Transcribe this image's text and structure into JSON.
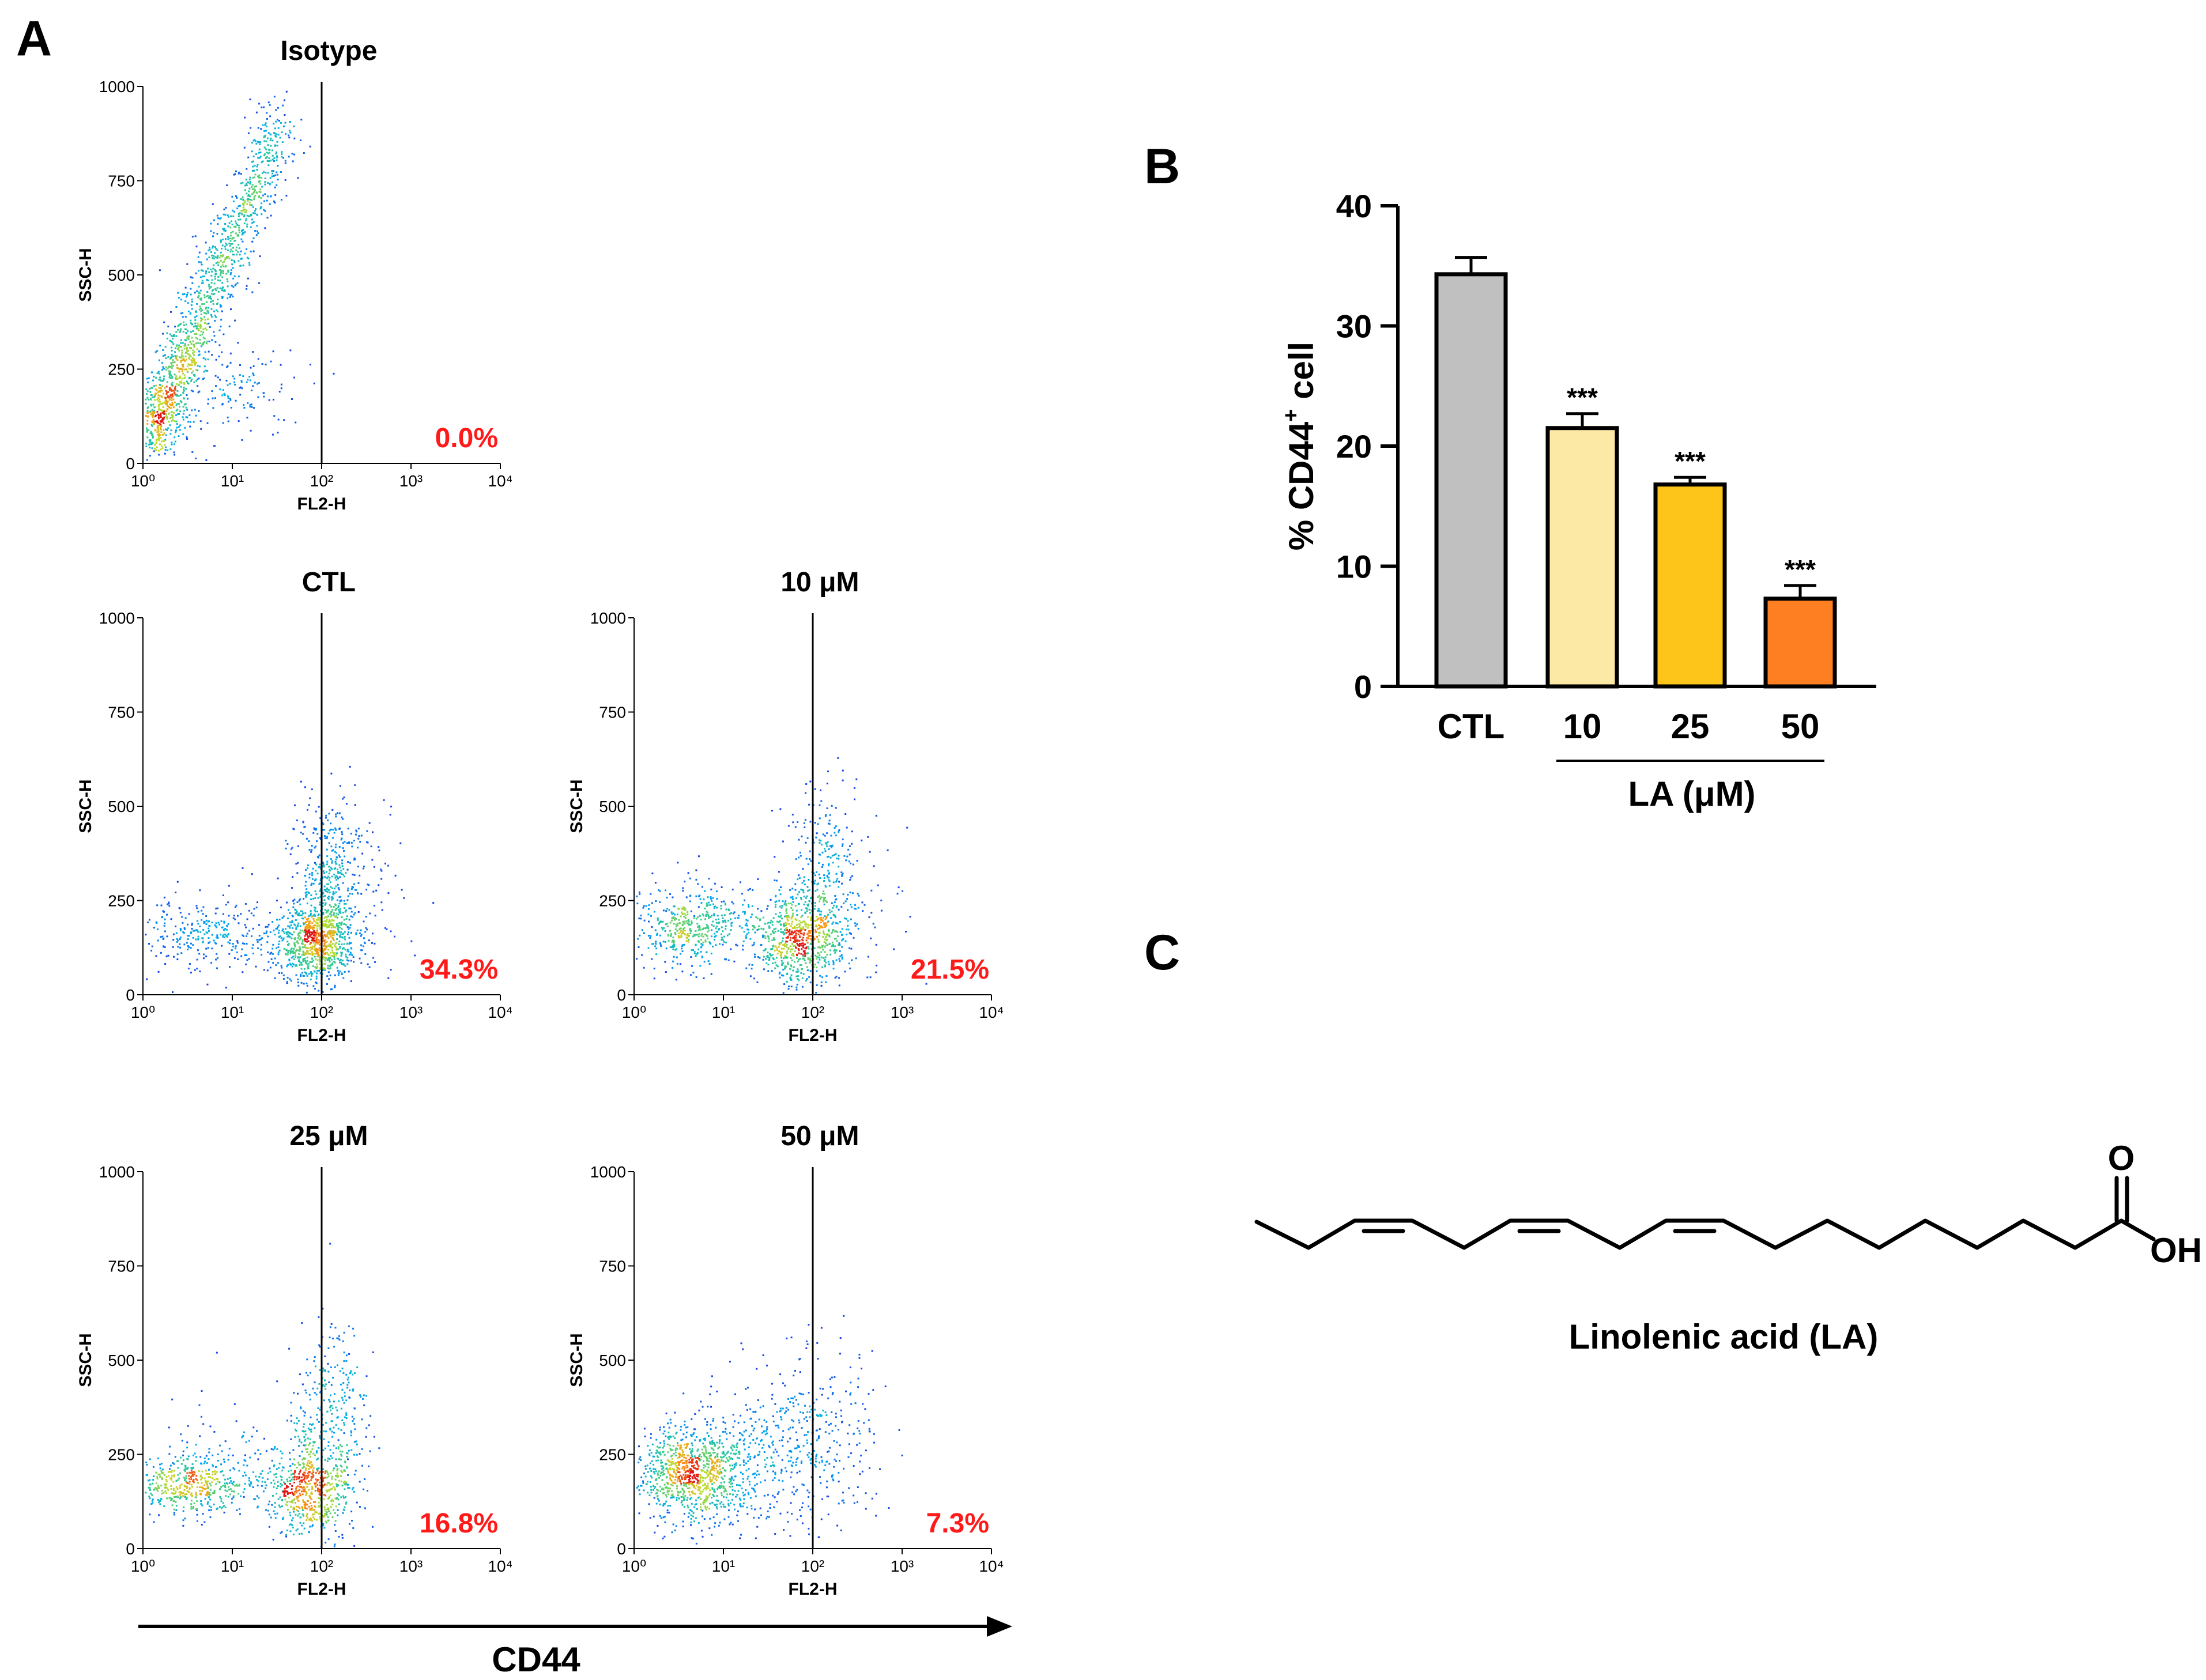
{
  "figure": {
    "panel_a_label": "A",
    "panel_b_label": "B",
    "panel_c_label": "C",
    "cd44_axis_label": "CD44",
    "compound_name": "Linolenic acid (LA)",
    "atom_o": "O",
    "atom_oh": "OH"
  },
  "colors": {
    "pct_text": "#ff1a1a",
    "bar_outline": "#000000"
  },
  "chart_data": [
    {
      "type": "scatter",
      "title": "Isotype",
      "xlabel": "FL2-H",
      "ylabel": "SSC-H",
      "x_ticks": [
        "10⁰",
        "10¹",
        "10²",
        "10³",
        "10⁴"
      ],
      "y_ticks": [
        "0",
        "250",
        "500",
        "750",
        "1000"
      ],
      "xlim": [
        1,
        10000
      ],
      "ylim": [
        0,
        1000
      ],
      "gate_x": 100,
      "percent_label": "0.0%",
      "cluster": "diagonal",
      "seed": 11
    },
    {
      "type": "scatter",
      "title": "CTL",
      "xlabel": "FL2-H",
      "ylabel": "SSC-H",
      "x_ticks": [
        "10⁰",
        "10¹",
        "10²",
        "10³",
        "10⁴"
      ],
      "y_ticks": [
        "0",
        "250",
        "500",
        "750",
        "1000"
      ],
      "xlim": [
        1,
        10000
      ],
      "ylim": [
        0,
        1000
      ],
      "gate_x": 100,
      "percent_label": "34.3%",
      "cluster": "ctl",
      "seed": 23
    },
    {
      "type": "scatter",
      "title": "10 μM",
      "xlabel": "FL2-H",
      "ylabel": "SSC-H",
      "x_ticks": [
        "10⁰",
        "10¹",
        "10²",
        "10³",
        "10⁴"
      ],
      "y_ticks": [
        "0",
        "250",
        "500",
        "750",
        "1000"
      ],
      "xlim": [
        1,
        10000
      ],
      "ylim": [
        0,
        1000
      ],
      "gate_x": 100,
      "percent_label": "21.5%",
      "cluster": "lo10",
      "seed": 37
    },
    {
      "type": "scatter",
      "title": "25 μM",
      "xlabel": "FL2-H",
      "ylabel": "SSC-H",
      "x_ticks": [
        "10⁰",
        "10¹",
        "10²",
        "10³",
        "10⁴"
      ],
      "y_ticks": [
        "0",
        "250",
        "500",
        "750",
        "1000"
      ],
      "xlim": [
        1,
        10000
      ],
      "ylim": [
        0,
        1000
      ],
      "gate_x": 100,
      "percent_label": "16.8%",
      "cluster": "lo25",
      "seed": 41
    },
    {
      "type": "scatter",
      "title": "50 μM",
      "xlabel": "FL2-H",
      "ylabel": "SSC-H",
      "x_ticks": [
        "10⁰",
        "10¹",
        "10²",
        "10³",
        "10⁴"
      ],
      "y_ticks": [
        "0",
        "250",
        "500",
        "750",
        "1000"
      ],
      "xlim": [
        1,
        10000
      ],
      "ylim": [
        0,
        1000
      ],
      "gate_x": 100,
      "percent_label": "7.3%",
      "cluster": "lo50",
      "seed": 53
    },
    {
      "type": "bar",
      "ylabel_prefix": "% CD44",
      "ylabel_sup": "+",
      "ylabel_suffix": " cell",
      "categories": [
        "CTL",
        "10",
        "25",
        "50"
      ],
      "values": [
        34.3,
        21.5,
        16.8,
        7.3
      ],
      "errors": [
        1.4,
        1.2,
        0.6,
        1.1
      ],
      "significance": [
        "",
        "***",
        "***",
        "***"
      ],
      "colors": [
        "#c0c0c0",
        "#fde9a6",
        "#fdc419",
        "#fd7f22"
      ],
      "ylim": [
        0,
        40
      ],
      "y_ticks": [
        0,
        10,
        20,
        30,
        40
      ],
      "group_label": "LA  (μM)"
    }
  ]
}
